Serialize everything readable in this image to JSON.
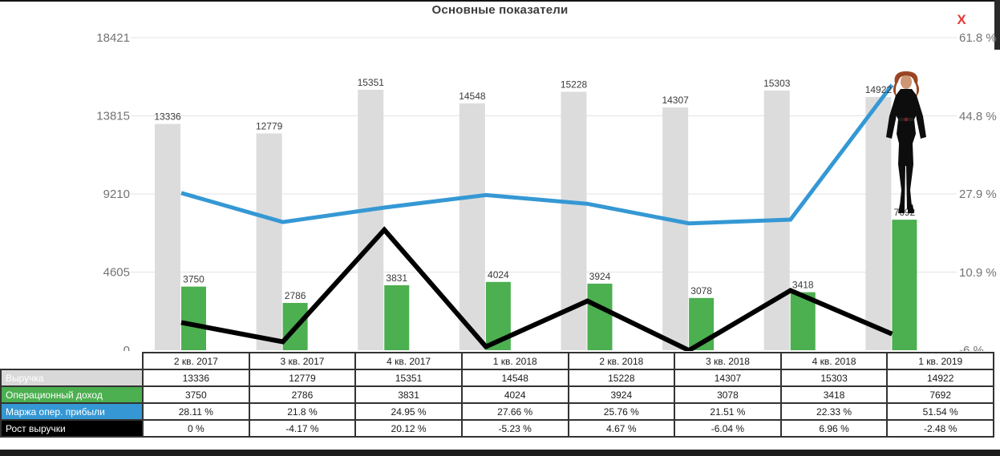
{
  "window": {
    "title": "Основные показатели",
    "close_label": "X"
  },
  "chart_data": {
    "type": "combo-bar-line",
    "title": "Основные показатели",
    "grid": true,
    "legend_position": "table-row-headers",
    "categories": [
      "2 кв. 2017",
      "3 кв. 2017",
      "4 кв. 2017",
      "1 кв. 2018",
      "2 кв. 2018",
      "3 кв. 2018",
      "4 кв. 2018",
      "1 кв. 2019"
    ],
    "series": [
      {
        "name": "Выручка",
        "type": "bar",
        "axis": "left",
        "color": "#dcdcdc",
        "legend_color": "#d9d9d9",
        "values": [
          13336,
          12779,
          15351,
          14548,
          15228,
          14307,
          15303,
          14922
        ],
        "display": [
          "13336",
          "12779",
          "15351",
          "14548",
          "15228",
          "14307",
          "15303",
          "14922"
        ],
        "show_point_labels": true
      },
      {
        "name": "Операционный доход",
        "type": "bar",
        "axis": "left",
        "color": "#4caf50",
        "legend_color": "#4caf50",
        "values": [
          3750,
          2786,
          3831,
          4024,
          3924,
          3078,
          3418,
          7692
        ],
        "display": [
          "3750",
          "2786",
          "3831",
          "4024",
          "3924",
          "3078",
          "3418",
          "7692"
        ],
        "show_point_labels": true
      },
      {
        "name": "Маржа опер. прибыли",
        "type": "line",
        "axis": "right",
        "color": "#3598d4",
        "legend_color": "#3598d4",
        "stroke_width": 5,
        "values": [
          28.11,
          21.8,
          24.95,
          27.66,
          25.76,
          21.51,
          22.33,
          51.54
        ],
        "display": [
          "28.11 %",
          "21.8 %",
          "24.95 %",
          "27.66 %",
          "25.76 %",
          "21.51 %",
          "22.33 %",
          "51.54 %"
        ],
        "show_point_labels": false
      },
      {
        "name": "Рост выручки",
        "type": "line",
        "axis": "right",
        "color": "#000000",
        "legend_color": "#000000",
        "stroke_width": 6,
        "values": [
          0,
          -4.17,
          20.12,
          -5.23,
          4.67,
          -6.04,
          6.96,
          -2.48
        ],
        "display": [
          "0 %",
          "-4.17 %",
          "20.12 %",
          "-5.23 %",
          "4.67 %",
          "-6.04 %",
          "6.96 %",
          "-2.48 %"
        ],
        "show_point_labels": false
      }
    ],
    "left_axis": {
      "min": 0,
      "max": 18421,
      "ticks": [
        0,
        4605,
        9210,
        13815,
        18421
      ],
      "labels": [
        "0",
        "4605",
        "9210",
        "13815",
        "18421"
      ]
    },
    "right_axis": {
      "min": -6,
      "max": 61.8,
      "ticks": [
        -6,
        10.9,
        27.9,
        44.8,
        61.8
      ],
      "labels": [
        "-6 %",
        "10.9 %",
        "27.9 %",
        "44.8 %",
        "61.8 %"
      ]
    }
  },
  "overlay_figure": {
    "name": "black-widow",
    "position_category": "1 кв. 2019"
  },
  "colors": {
    "grid": "#e3e3e3",
    "axis_text": "#737373",
    "point_label_text": "#3a3a3a",
    "close_red": "#e53935",
    "table_border": "#333333"
  }
}
